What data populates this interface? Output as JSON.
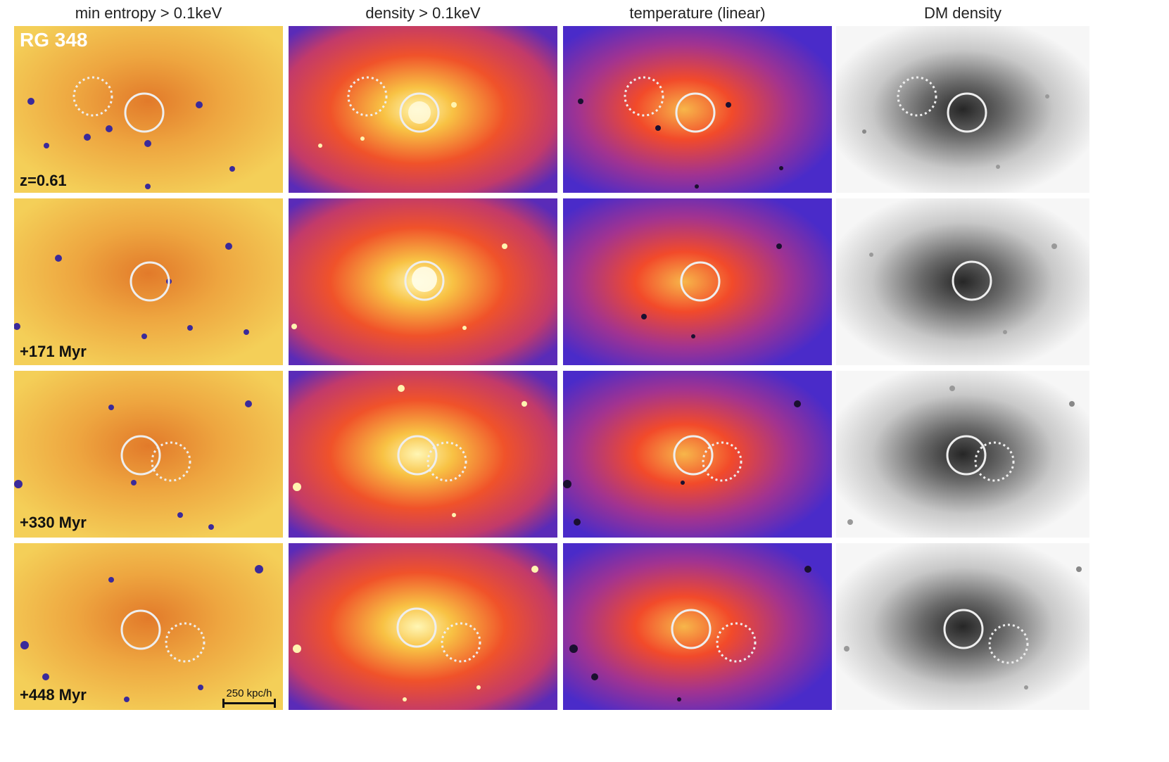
{
  "figure": {
    "columns": [
      {
        "title": "min entropy > 0.1keV",
        "colormap": "entropy"
      },
      {
        "title": "density > 0.1keV",
        "colormap": "density"
      },
      {
        "title": "temperature (linear)",
        "colormap": "temperature"
      },
      {
        "title": "DM density",
        "colormap": "dm"
      }
    ],
    "cluster_label": "RG 348",
    "rows": [
      {
        "label": "z=0.61"
      },
      {
        "label": "+171 Myr"
      },
      {
        "label": "+330 Myr"
      },
      {
        "label": "+448 Myr"
      }
    ],
    "scalebar_label": "250 kpc/h",
    "colors": {
      "entropy_bg": "#f2c94a",
      "entropy_mid": "#e68a2e",
      "density_bg": "#6b2fb5",
      "density_mid": "#f0522a",
      "density_core": "#fff2a8",
      "temperature_bg": "#4a2bc9",
      "temperature_mid": "#f04a2a",
      "dm_bg": "#f4f4f4",
      "dm_core": "#2a2a2a"
    }
  }
}
